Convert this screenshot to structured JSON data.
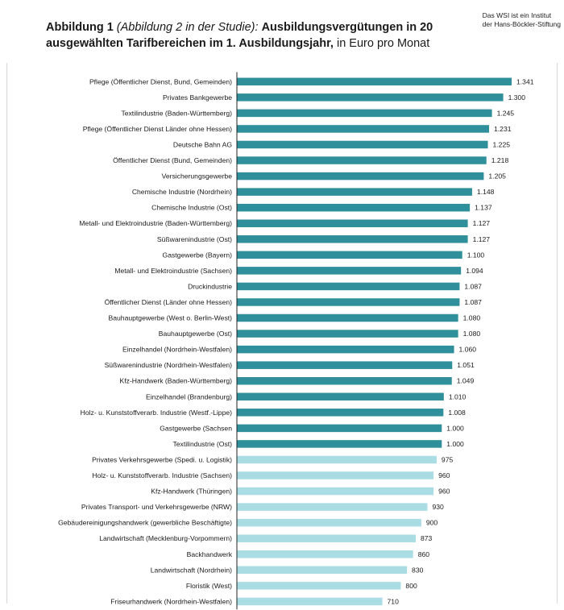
{
  "header": {
    "lead": "Abbildung 1",
    "paren": "(Abbildung 2 in der Studie):",
    "main": "Ausbildungsvergütungen in 20 ausgewählten Tarifbereichen im 1. Ausbildungsjahr,",
    "unit": "in Euro pro Monat"
  },
  "source_note": {
    "line1": "Das WSI ist ein Institut",
    "line2": "der Hans-Böckler-Stiftung"
  },
  "colors": {
    "dark_bar": "#2f8f9a",
    "light_bar": "#a9dde3",
    "axis": "#222222"
  },
  "chart_data": {
    "type": "bar",
    "orientation": "horizontal",
    "grid": false,
    "categories": [
      "Pflege (Öffentlicher Dienst, Bund, Gemeinden)",
      "Privates Bankgewerbe",
      "Textilindustrie (Baden-Württemberg)",
      "Pflege (Öffentlicher Dienst Länder ohne Hessen)",
      "Deutsche Bahn AG",
      "Öffentlicher Dienst (Bund, Gemeinden)",
      "Versicherungsgewerbe",
      "Chemische Industrie (Nordrhein)",
      "Chemische Industrie (Ost)",
      "Metall- und Elektroindustrie (Baden-Württemberg)",
      "Süßwarenindustrie (Ost)",
      "Gastgewerbe (Bayern)",
      "Metall- und Elektroindustrie (Sachsen)",
      "Druckindustrie",
      "Öffentlicher Dienst (Länder ohne Hessen)",
      "Bauhauptgewerbe (West o. Berlin-West)",
      "Bauhauptgewerbe (Ost)",
      "Einzelhandel (Nordrhein-Westfalen)",
      "Süßwarenindustrie (Nordrhein-Westfalen)",
      "Kfz-Handwerk (Baden-Württemberg)",
      "Einzelhandel (Brandenburg)",
      "Holz- u. Kunststoffverarb. Industrie (Westf.-Lippe)",
      "Gastgewerbe (Sachsen",
      "Textilindustrie (Ost)",
      "Privates Verkehrsgewerbe (Spedi. u. Logistik)",
      "Holz- u. Kunststoffverarb. Industrie (Sachsen)",
      "Kfz-Handwerk (Thüringen)",
      "Privates Transport- und Verkehrsgewerbe (NRW)",
      "Gebäudereinigungshandwerk (gewerbliche Beschäftigte)",
      "Landwirtschaft (Mecklenburg-Vorpommern)",
      "Backhandwerk",
      "Landwirtschaft (Nordrhein)",
      "Floristik (West)",
      "Friseurhandwerk (Nordrhein-Westfalen)"
    ],
    "values": [
      1341,
      1300,
      1245,
      1231,
      1225,
      1218,
      1205,
      1148,
      1137,
      1127,
      1127,
      1100,
      1094,
      1087,
      1087,
      1080,
      1080,
      1060,
      1051,
      1049,
      1010,
      1008,
      1000,
      1000,
      975,
      960,
      960,
      930,
      900,
      873,
      860,
      830,
      800,
      710
    ],
    "value_labels": [
      "1.341",
      "1.300",
      "1.245",
      "1.231",
      "1.225",
      "1.218",
      "1.205",
      "1.148",
      "1.137",
      "1.127",
      "1.127",
      "1.100",
      "1.094",
      "1.087",
      "1.087",
      "1.080",
      "1.080",
      "1.060",
      "1.051",
      "1.049",
      "1.010",
      "1.008",
      "1.000",
      "1.000",
      "975",
      "960",
      "960",
      "930",
      "900",
      "873",
      "860",
      "830",
      "800",
      "710"
    ],
    "highlight_threshold": 1000,
    "xlim": [
      0,
      1341
    ]
  }
}
